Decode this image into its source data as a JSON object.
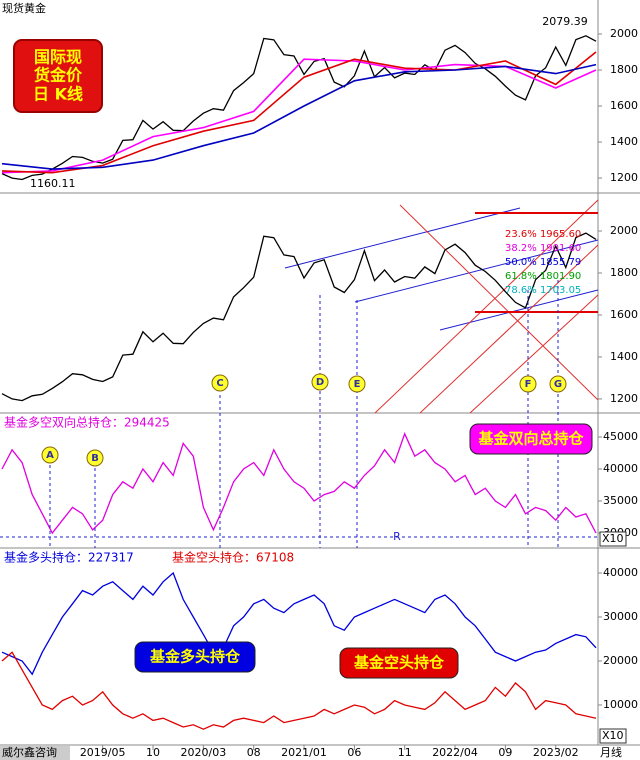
{
  "header": {
    "title": "现货黄金",
    "badge": [
      "国际现",
      "货金价",
      "日 K线"
    ],
    "footer": "威尔鑫咨询"
  },
  "x_axis": {
    "x": [
      0,
      1,
      2,
      3,
      4,
      5,
      6,
      7,
      8,
      9,
      10,
      11,
      12,
      13,
      14,
      15,
      16,
      17,
      18,
      19,
      20,
      21,
      22,
      23,
      24,
      25,
      26,
      27,
      28,
      29,
      30,
      31,
      32,
      33,
      34,
      35,
      36,
      37,
      38,
      39,
      40,
      41,
      42,
      43,
      44,
      45,
      46,
      47,
      48,
      49,
      50,
      51,
      52,
      53,
      54,
      55,
      56,
      57,
      58,
      59
    ],
    "xlim": [
      0,
      59
    ],
    "xticks": [
      {
        "value": 10,
        "label": "2019/05"
      },
      {
        "value": 15,
        "label": "10"
      },
      {
        "value": 20,
        "label": "2020/03"
      },
      {
        "value": 25,
        "label": "08"
      },
      {
        "value": 30,
        "label": "2021/01"
      },
      {
        "value": 35,
        "label": "06"
      },
      {
        "value": 40,
        "label": "11"
      },
      {
        "value": 45,
        "label": "2022/04"
      },
      {
        "value": 50,
        "label": "09"
      },
      {
        "value": 55,
        "label": "2023/02"
      }
    ],
    "unit_label": "月线"
  },
  "chart_data": [
    {
      "type": "line",
      "ylim": [
        1117,
        2189
      ],
      "yticks": [
        1200,
        1400,
        1600,
        1800,
        2000
      ],
      "series": [
        {
          "color": "#000000",
          "values": [
            1225,
            1200,
            1192,
            1215,
            1222,
            1250,
            1282,
            1320,
            1315,
            1293,
            1283,
            1305,
            1409,
            1413,
            1520,
            1472,
            1513,
            1465,
            1463,
            1517,
            1560,
            1585,
            1577,
            1686,
            1730,
            1780,
            1975,
            1968,
            1886,
            1878,
            1776,
            1848,
            1863,
            1733,
            1707,
            1768,
            1906,
            1763,
            1814,
            1757,
            1783,
            1775,
            1829,
            1797,
            1910,
            1937,
            1897,
            1837,
            1807,
            1765,
            1711,
            1660,
            1634,
            1768,
            1813,
            1928,
            1826,
            1969,
            1990,
            1960
          ]
        },
        {
          "color": "#ff00ff",
          "x": [
            0,
            5,
            10,
            15,
            20,
            25,
            30,
            35,
            40,
            45,
            50,
            55,
            59
          ],
          "values": [
            1230,
            1240,
            1300,
            1430,
            1480,
            1570,
            1860,
            1850,
            1800,
            1830,
            1820,
            1700,
            1800
          ]
        },
        {
          "color": "#e00000",
          "x": [
            0,
            5,
            10,
            15,
            20,
            25,
            30,
            35,
            40,
            45,
            50,
            55,
            59
          ],
          "values": [
            1240,
            1230,
            1270,
            1380,
            1460,
            1520,
            1760,
            1860,
            1810,
            1800,
            1850,
            1720,
            1900
          ]
        },
        {
          "color": "#0000c0",
          "x": [
            0,
            5,
            10,
            15,
            20,
            25,
            30,
            35,
            40,
            45,
            50,
            55,
            59
          ],
          "values": [
            1280,
            1250,
            1260,
            1300,
            1380,
            1450,
            1600,
            1740,
            1790,
            1800,
            1820,
            1780,
            1830
          ]
        }
      ],
      "annotations": [
        "2079.39",
        "1160.11"
      ]
    },
    {
      "type": "line",
      "ylim": [
        1133,
        2181
      ],
      "yticks": [
        1200,
        1400,
        1600,
        1800,
        2000
      ],
      "series": [
        {
          "color": "#000000",
          "values": [
            1225,
            1200,
            1192,
            1215,
            1222,
            1250,
            1282,
            1320,
            1315,
            1293,
            1283,
            1305,
            1409,
            1413,
            1520,
            1472,
            1513,
            1465,
            1463,
            1517,
            1560,
            1585,
            1577,
            1686,
            1730,
            1780,
            1975,
            1968,
            1886,
            1878,
            1776,
            1848,
            1863,
            1733,
            1707,
            1768,
            1906,
            1763,
            1814,
            1757,
            1783,
            1775,
            1829,
            1797,
            1910,
            1937,
            1897,
            1837,
            1807,
            1765,
            1711,
            1660,
            1634,
            1768,
            1813,
            1928,
            1826,
            1969,
            1990,
            1960
          ]
        }
      ],
      "annotations": [
        "C",
        "D",
        "E",
        "F",
        "G"
      ],
      "fib_labels": [
        "23.6%  1965.60",
        "38.2%  1901.60",
        "50.0%  1855.79",
        "61.8%  1801.90",
        "78.6%  1703.05"
      ]
    },
    {
      "type": "line",
      "ylim": [
        27650,
        48750
      ],
      "yticks": [
        30000,
        35000,
        40000,
        45000
      ],
      "series": [
        {
          "name": "基金多空双向总持仓：294425",
          "color": "#e000e0",
          "values": [
            40000,
            43000,
            41000,
            36000,
            33000,
            30000,
            32000,
            34000,
            33000,
            30500,
            32000,
            36000,
            38000,
            37000,
            40000,
            38000,
            41000,
            39000,
            44000,
            42000,
            34000,
            30500,
            34000,
            38000,
            40000,
            41000,
            39000,
            43000,
            40000,
            38000,
            37000,
            35000,
            36000,
            36500,
            38000,
            37000,
            39000,
            40500,
            43000,
            41000,
            45500,
            42000,
            43000,
            41000,
            40000,
            38000,
            39000,
            36000,
            37000,
            35000,
            34000,
            36000,
            33000,
            34000,
            33500,
            32000,
            34000,
            32500,
            33000,
            30000
          ]
        }
      ],
      "annotations": [
        "A",
        "B",
        "R"
      ],
      "badges": [
        "基金双向总持仓"
      ],
      "scale_label": "X10"
    },
    {
      "type": "line",
      "ylim": [
        900,
        45680
      ],
      "yticks": [
        10000,
        20000,
        30000,
        40000
      ],
      "series": [
        {
          "name": "基金多头持仓：227317",
          "color": "#0000e0",
          "values": [
            22000,
            21000,
            20000,
            17000,
            22000,
            26000,
            30000,
            33000,
            36000,
            35000,
            37000,
            38000,
            36000,
            34000,
            37000,
            35000,
            38000,
            40000,
            34000,
            30000,
            26000,
            22000,
            23000,
            28000,
            30000,
            33000,
            34000,
            32000,
            31000,
            33000,
            34000,
            35000,
            33000,
            28000,
            27000,
            30000,
            31000,
            32000,
            33000,
            34000,
            33000,
            32000,
            31000,
            34000,
            35000,
            33000,
            30000,
            28000,
            25000,
            22000,
            21000,
            20000,
            21000,
            22000,
            22500,
            24000,
            25000,
            26000,
            25500,
            23000
          ]
        },
        {
          "name": "基金空头持仓：67108",
          "color": "#e00000",
          "values": [
            20000,
            22000,
            18000,
            14000,
            10000,
            9000,
            11000,
            12000,
            10000,
            11000,
            13000,
            10000,
            8000,
            7000,
            8000,
            6500,
            7000,
            6000,
            5000,
            5500,
            4500,
            5500,
            5000,
            6500,
            7000,
            6500,
            6000,
            7500,
            6000,
            6500,
            7000,
            7500,
            9000,
            8000,
            9000,
            10000,
            9500,
            8000,
            9000,
            11000,
            10000,
            9500,
            9000,
            10500,
            13000,
            11000,
            9000,
            10000,
            11000,
            14000,
            12000,
            15000,
            13000,
            9000,
            11000,
            10500,
            10000,
            8000,
            7500,
            7000
          ]
        }
      ],
      "badges": [
        "基金多头持仓",
        "基金空头持仓"
      ],
      "scale_label": "X10"
    }
  ]
}
